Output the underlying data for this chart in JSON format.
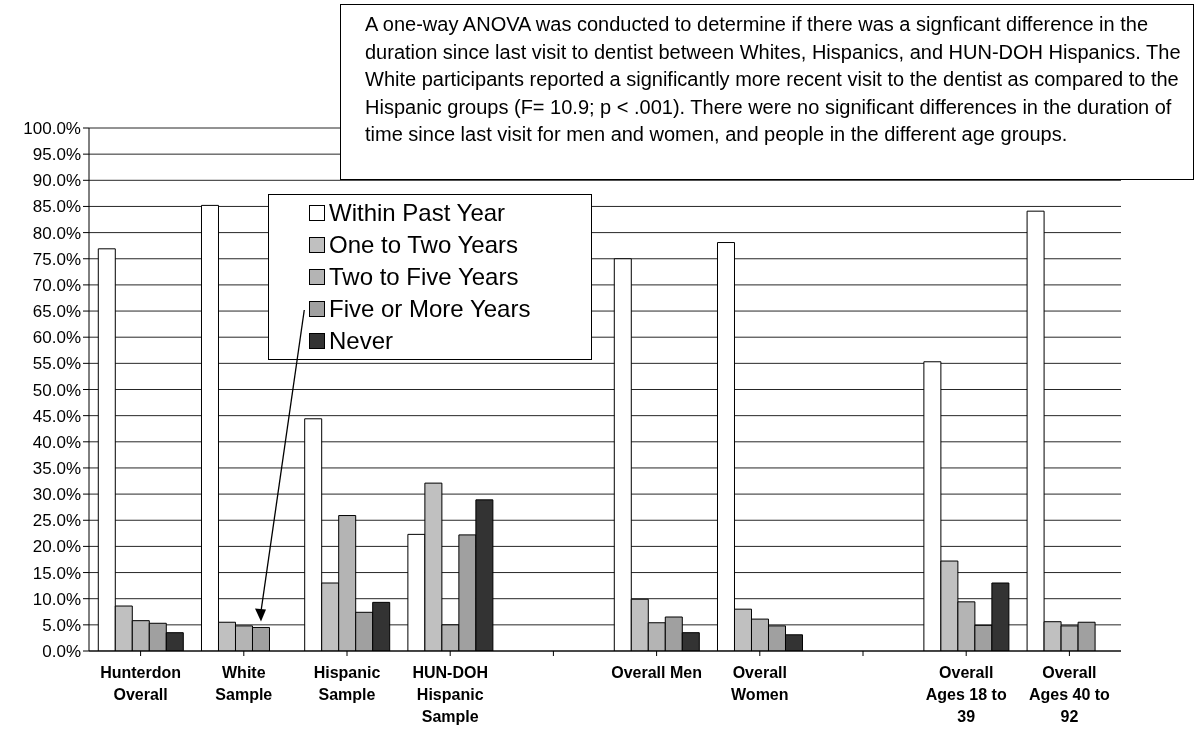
{
  "chart_data": {
    "type": "bar",
    "categories": [
      "Hunterdon Overall",
      "White Sample",
      "Hispanic Sample",
      "HUN-DOH Hispanic Sample",
      null,
      "Overall Men",
      "Overall Women",
      null,
      "Overall Ages 18 to 39",
      "Overall Ages 40 to 92"
    ],
    "series": [
      {
        "name": "Within Past Year",
        "color": "#ffffff",
        "values": [
          76.9,
          85.2,
          44.4,
          22.3,
          null,
          75.0,
          78.1,
          null,
          55.3,
          84.1
        ]
      },
      {
        "name": "One to Two Years",
        "color": "#c0c0c0",
        "values": [
          8.6,
          5.5,
          13.0,
          32.1,
          null,
          9.9,
          8.0,
          null,
          17.2,
          5.6
        ]
      },
      {
        "name": "Two to Five Years",
        "color": "#b4b4b4",
        "values": [
          5.8,
          4.8,
          25.9,
          5.0,
          null,
          5.4,
          6.1,
          null,
          9.4,
          4.8
        ]
      },
      {
        "name": "Five or More Years",
        "color": "#a0a0a0",
        "values": [
          5.3,
          4.5,
          7.4,
          22.2,
          null,
          6.5,
          4.8,
          null,
          4.9,
          5.5
        ]
      },
      {
        "name": "Never",
        "color": "#333333",
        "values": [
          3.5,
          null,
          9.3,
          28.9,
          null,
          3.5,
          3.1,
          null,
          13.0,
          null
        ]
      }
    ],
    "ylim": [
      0,
      100
    ],
    "yticks": [
      {
        "value": 0,
        "label": "0.0%"
      },
      {
        "value": 5,
        "label": "5.0%"
      },
      {
        "value": 10,
        "label": "10.0%"
      },
      {
        "value": 15,
        "label": "15.0%"
      },
      {
        "value": 20,
        "label": "20.0%"
      },
      {
        "value": 25,
        "label": "25.0%"
      },
      {
        "value": 30,
        "label": "30.0%"
      },
      {
        "value": 35,
        "label": "35.0%"
      },
      {
        "value": 40,
        "label": "40.0%"
      },
      {
        "value": 45,
        "label": "45.0%"
      },
      {
        "value": 50,
        "label": "50.0%"
      },
      {
        "value": 55,
        "label": "55.0%"
      },
      {
        "value": 60,
        "label": "60.0%"
      },
      {
        "value": 65,
        "label": "65.0%"
      },
      {
        "value": 70,
        "label": "70.0%"
      },
      {
        "value": 75,
        "label": "75.0%"
      },
      {
        "value": 80,
        "label": "80.0%"
      },
      {
        "value": 85,
        "label": "85.0%"
      },
      {
        "value": 90,
        "label": "90.0%"
      },
      {
        "value": 95,
        "label": "95.0%"
      },
      {
        "value": 100,
        "label": "100.0%"
      }
    ],
    "grid": "y",
    "legend": "top left",
    "annotations": [
      "A one-way ANOVA was conducted to determine if there was a signficant difference in the duration since last visit to dentist between Whites, Hispanics, and HUN-DOH Hispanics.  The White participants reported a significantly more recent visit to the dentist as compared to the Hispanic groups (F= 10.9; p < .001).  There were no significant differences in the duration of time since last visit for men and women, and people in the different age groups."
    ]
  }
}
